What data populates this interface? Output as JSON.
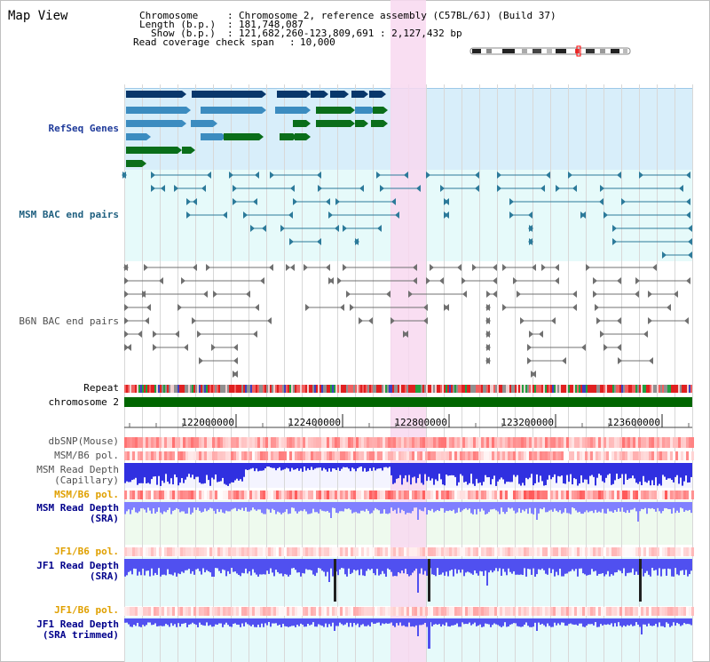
{
  "title": "Map View",
  "info": {
    "chromosome_label": "Chromosome",
    "chromosome_value": "Chromosome 2, reference assembly (C57BL/6J) (Build 37)",
    "length_label": "Length (b.p.)",
    "length_value": "181,748,087",
    "show_label": "Show (b.p.)",
    "show_value": "121,682,260-123,809,691 : 2,127,432 bp",
    "coverage_label": "Read coverage check span",
    "coverage_value": "10,000"
  },
  "tracks": {
    "refseq": "RefSeq Genes",
    "msm_bac": "MSM BAC end pairs",
    "b6n_bac": "B6N BAC end pairs",
    "repeat": "Repeat",
    "chromosome": "chromosome 2",
    "dbsnp": "dbSNP(Mouse)",
    "msm_b6_pol_1": "MSM/B6 pol.",
    "msm_depth_cap_1": "MSM Read Depth",
    "msm_depth_cap_2": "(Capillary)",
    "msm_b6_pol_2": "MSM/B6 pol.",
    "msm_depth_sra_1": "MSM Read Depth",
    "msm_depth_sra_2": "(SRA)",
    "jf1_b6_pol_1": "JF1/B6 pol.",
    "jf1_depth_sra_1": "JF1 Read Depth",
    "jf1_depth_sra_2": "(SRA)",
    "jf1_b6_pol_2": "JF1/B6 pol.",
    "jf1_depth_trim_1": "JF1 Read Depth",
    "jf1_depth_trim_2": "(SRA trimmed)"
  },
  "ruler": {
    "ticks": [
      "122000000",
      "122400000",
      "122800000",
      "123200000",
      "123600000"
    ]
  },
  "colors": {
    "refseq_bg": "#d8eefa",
    "msm_bac_bg": "#e6fafa",
    "highlight": "#f8d8f0",
    "chromosome_bar": "#006600",
    "depth_blue": "#3030e0",
    "depth_light": "#8080ff",
    "gene_dark": "#08376b",
    "gene_mid": "#3c8cc0",
    "gene_green": "#0a6e1a"
  }
}
